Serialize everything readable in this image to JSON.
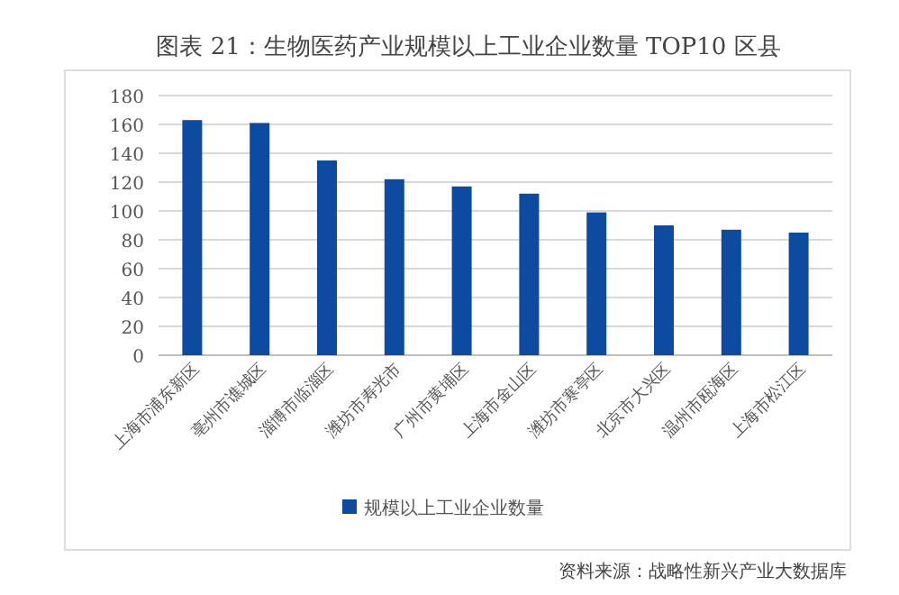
{
  "chart_data": {
    "type": "bar",
    "title": "图表 21：生物医药产业规模以上工业企业数量 TOP10 区县",
    "categories": [
      "上海市浦东新区",
      "亳州市谯城区",
      "淄博市临淄区",
      "潍坊市寿光市",
      "广州市黄埔区",
      "上海市金山区",
      "潍坊市寒亭区",
      "北京市大兴区",
      "温州市瓯海区",
      "上海市松江区"
    ],
    "series": [
      {
        "name": "规模以上工业企业数量",
        "color": "#0d4ba0",
        "values": [
          163,
          161,
          135,
          122,
          117,
          112,
          99,
          90,
          87,
          85
        ]
      }
    ],
    "ylim": [
      0,
      180
    ],
    "yticks": [
      0,
      20,
      40,
      60,
      80,
      100,
      120,
      140,
      160,
      180
    ],
    "grid": "y",
    "legend": "bottom",
    "annotations": [
      "资料来源：战略性新兴产业大数据库"
    ]
  }
}
